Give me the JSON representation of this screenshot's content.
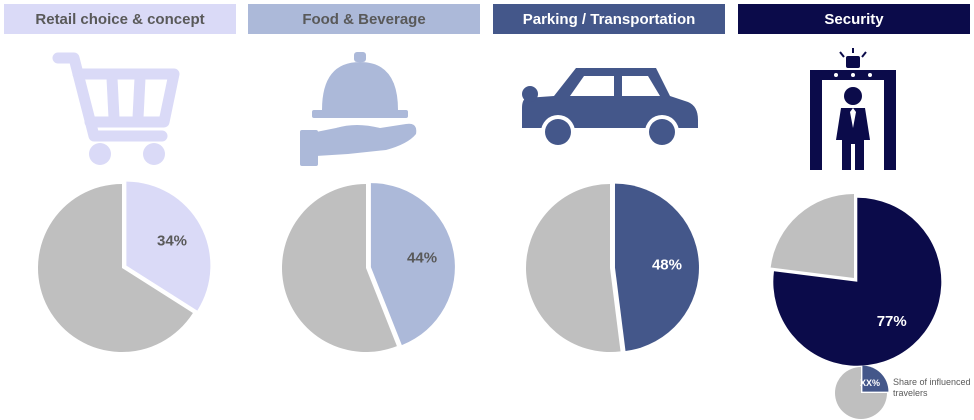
{
  "chart_data": [
    {
      "type": "pie",
      "title": "Retail choice & concept",
      "values": [
        34,
        66
      ],
      "label": "34%",
      "colors": {
        "header_bg": "#DADAF7",
        "header_text": "#595959",
        "slice": "#DADAF7",
        "rest": "#BFBFBF",
        "label": "#595959"
      },
      "icon": "shopping-cart-icon"
    },
    {
      "type": "pie",
      "title": "Food & Beverage",
      "values": [
        44,
        56
      ],
      "label": "44%",
      "colors": {
        "header_bg": "#ACB9D9",
        "header_text": "#595959",
        "slice": "#ACB9D9",
        "rest": "#BFBFBF",
        "label": "#595959"
      },
      "icon": "serving-cloche-icon"
    },
    {
      "type": "pie",
      "title": "Parking / Transportation",
      "values": [
        48,
        52
      ],
      "label": "48%",
      "colors": {
        "header_bg": "#44578A",
        "header_text": "#FFFFFF",
        "slice": "#44578A",
        "rest": "#BFBFBF",
        "label": "#FFFFFF"
      },
      "icon": "car-icon"
    },
    {
      "type": "pie",
      "title": "Security",
      "values": [
        77,
        23
      ],
      "label": "77%",
      "colors": {
        "header_bg": "#0B0B4A",
        "header_text": "#FFFFFF",
        "slice": "#0B0B4A",
        "rest": "#BFBFBF",
        "label": "#FFFFFF"
      },
      "icon": "security-scanner-icon"
    }
  ],
  "legend": {
    "label": "XX%",
    "text_line1": "Share of influenced",
    "text_line2": "travelers",
    "colors": {
      "slice": "#44578A",
      "rest": "#BFBFBF"
    }
  }
}
